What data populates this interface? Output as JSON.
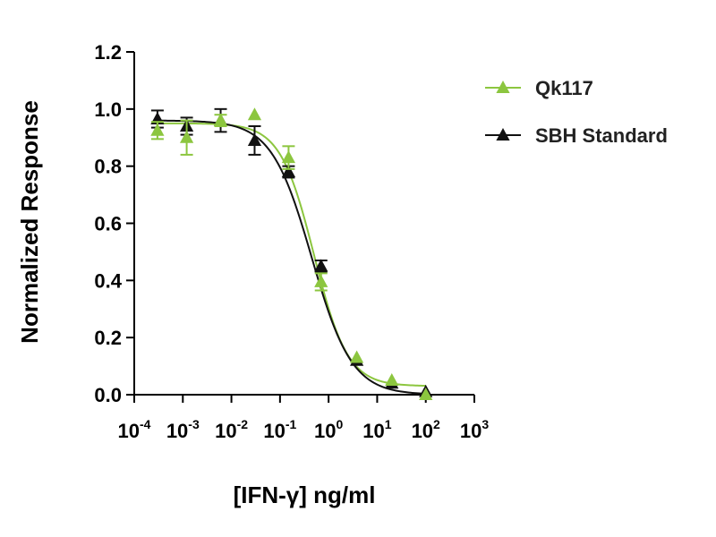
{
  "chart_data": {
    "type": "scatter",
    "xlabel": "[IFN-γ] ng/ml",
    "ylabel": "Normalized Response",
    "xscale": "log",
    "xlim": [
      0.0001,
      1000
    ],
    "ylim": [
      0.0,
      1.2
    ],
    "yticks": [
      "0.0",
      "0.2",
      "0.4",
      "0.6",
      "0.8",
      "1.0",
      "1.2"
    ],
    "xticks": [
      {
        "base": "10",
        "exp": "-4"
      },
      {
        "base": "10",
        "exp": "-3"
      },
      {
        "base": "10",
        "exp": "-2"
      },
      {
        "base": "10",
        "exp": "-1"
      },
      {
        "base": "10",
        "exp": "0"
      },
      {
        "base": "10",
        "exp": "1"
      },
      {
        "base": "10",
        "exp": "2"
      },
      {
        "base": "10",
        "exp": "3"
      }
    ],
    "grid": false,
    "legend_position": "top-right",
    "series": [
      {
        "name": "Qk117",
        "color": "#8cc63f",
        "marker": "triangle",
        "fit": {
          "model": "4PL",
          "top": 0.95,
          "bottom": 0.03,
          "ec50": 0.5,
          "hill": 1.25
        },
        "points": [
          {
            "x": 0.0003,
            "y": 0.925,
            "err": 0.03
          },
          {
            "x": 0.0012,
            "y": 0.9,
            "err": 0.06
          },
          {
            "x": 0.006,
            "y": 0.96,
            "err": 0.02
          },
          {
            "x": 0.03,
            "y": 0.98,
            "err": 0.0
          },
          {
            "x": 0.15,
            "y": 0.83,
            "err": 0.04
          },
          {
            "x": 0.7,
            "y": 0.395,
            "err": 0.03
          },
          {
            "x": 3.8,
            "y": 0.13,
            "err": 0.0
          },
          {
            "x": 20,
            "y": 0.05,
            "err": 0.0
          },
          {
            "x": 100,
            "y": 0.0,
            "err": 0.0
          }
        ]
      },
      {
        "name": "SBH Standard",
        "color": "#111111",
        "marker": "triangle",
        "fit": {
          "model": "4PL",
          "top": 0.96,
          "bottom": 0.0,
          "ec50": 0.45,
          "hill": 1.05
        },
        "points": [
          {
            "x": 0.0003,
            "y": 0.965,
            "err": 0.03
          },
          {
            "x": 0.0012,
            "y": 0.94,
            "err": 0.03
          },
          {
            "x": 0.006,
            "y": 0.96,
            "err": 0.04
          },
          {
            "x": 0.03,
            "y": 0.89,
            "err": 0.05
          },
          {
            "x": 0.15,
            "y": 0.78,
            "err": 0.02
          },
          {
            "x": 0.7,
            "y": 0.45,
            "err": 0.02
          },
          {
            "x": 3.8,
            "y": 0.12,
            "err": 0.0
          },
          {
            "x": 20,
            "y": 0.04,
            "err": 0.0
          },
          {
            "x": 100,
            "y": 0.01,
            "err": 0.0
          }
        ]
      }
    ]
  }
}
